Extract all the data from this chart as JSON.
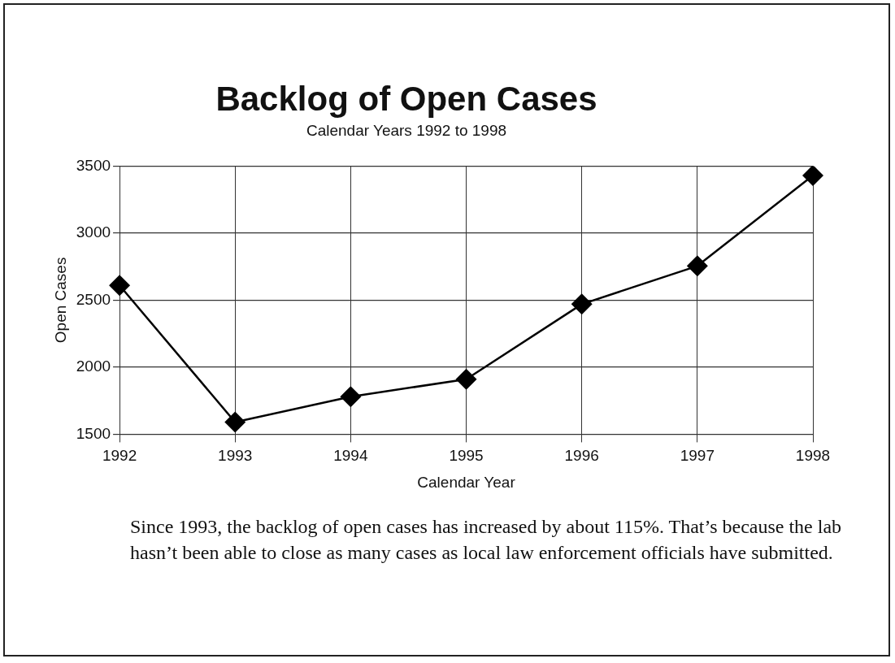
{
  "chart_data": {
    "type": "line",
    "title": "Backlog of Open Cases",
    "subtitle": "Calendar Years 1992 to 1998",
    "xlabel": "Calendar Year",
    "ylabel": "Open Cases",
    "categories": [
      "1992",
      "1993",
      "1994",
      "1995",
      "1996",
      "1997",
      "1998"
    ],
    "series": [
      {
        "color": "#000000",
        "values": [
          2610,
          1590,
          1780,
          1910,
          2470,
          2755,
          3430
        ]
      }
    ],
    "ylim": [
      1500,
      3500
    ],
    "yticks": [
      1500,
      2000,
      2500,
      3000,
      3500
    ],
    "grid": true,
    "marker": "diamond",
    "line_style": "solid",
    "annotations": [
      "Since 1993, the backlog of open cases has increased by about 115%. That’s because the lab hasn’t been able to close as many cases as local law enforcement officials have submitted."
    ]
  }
}
